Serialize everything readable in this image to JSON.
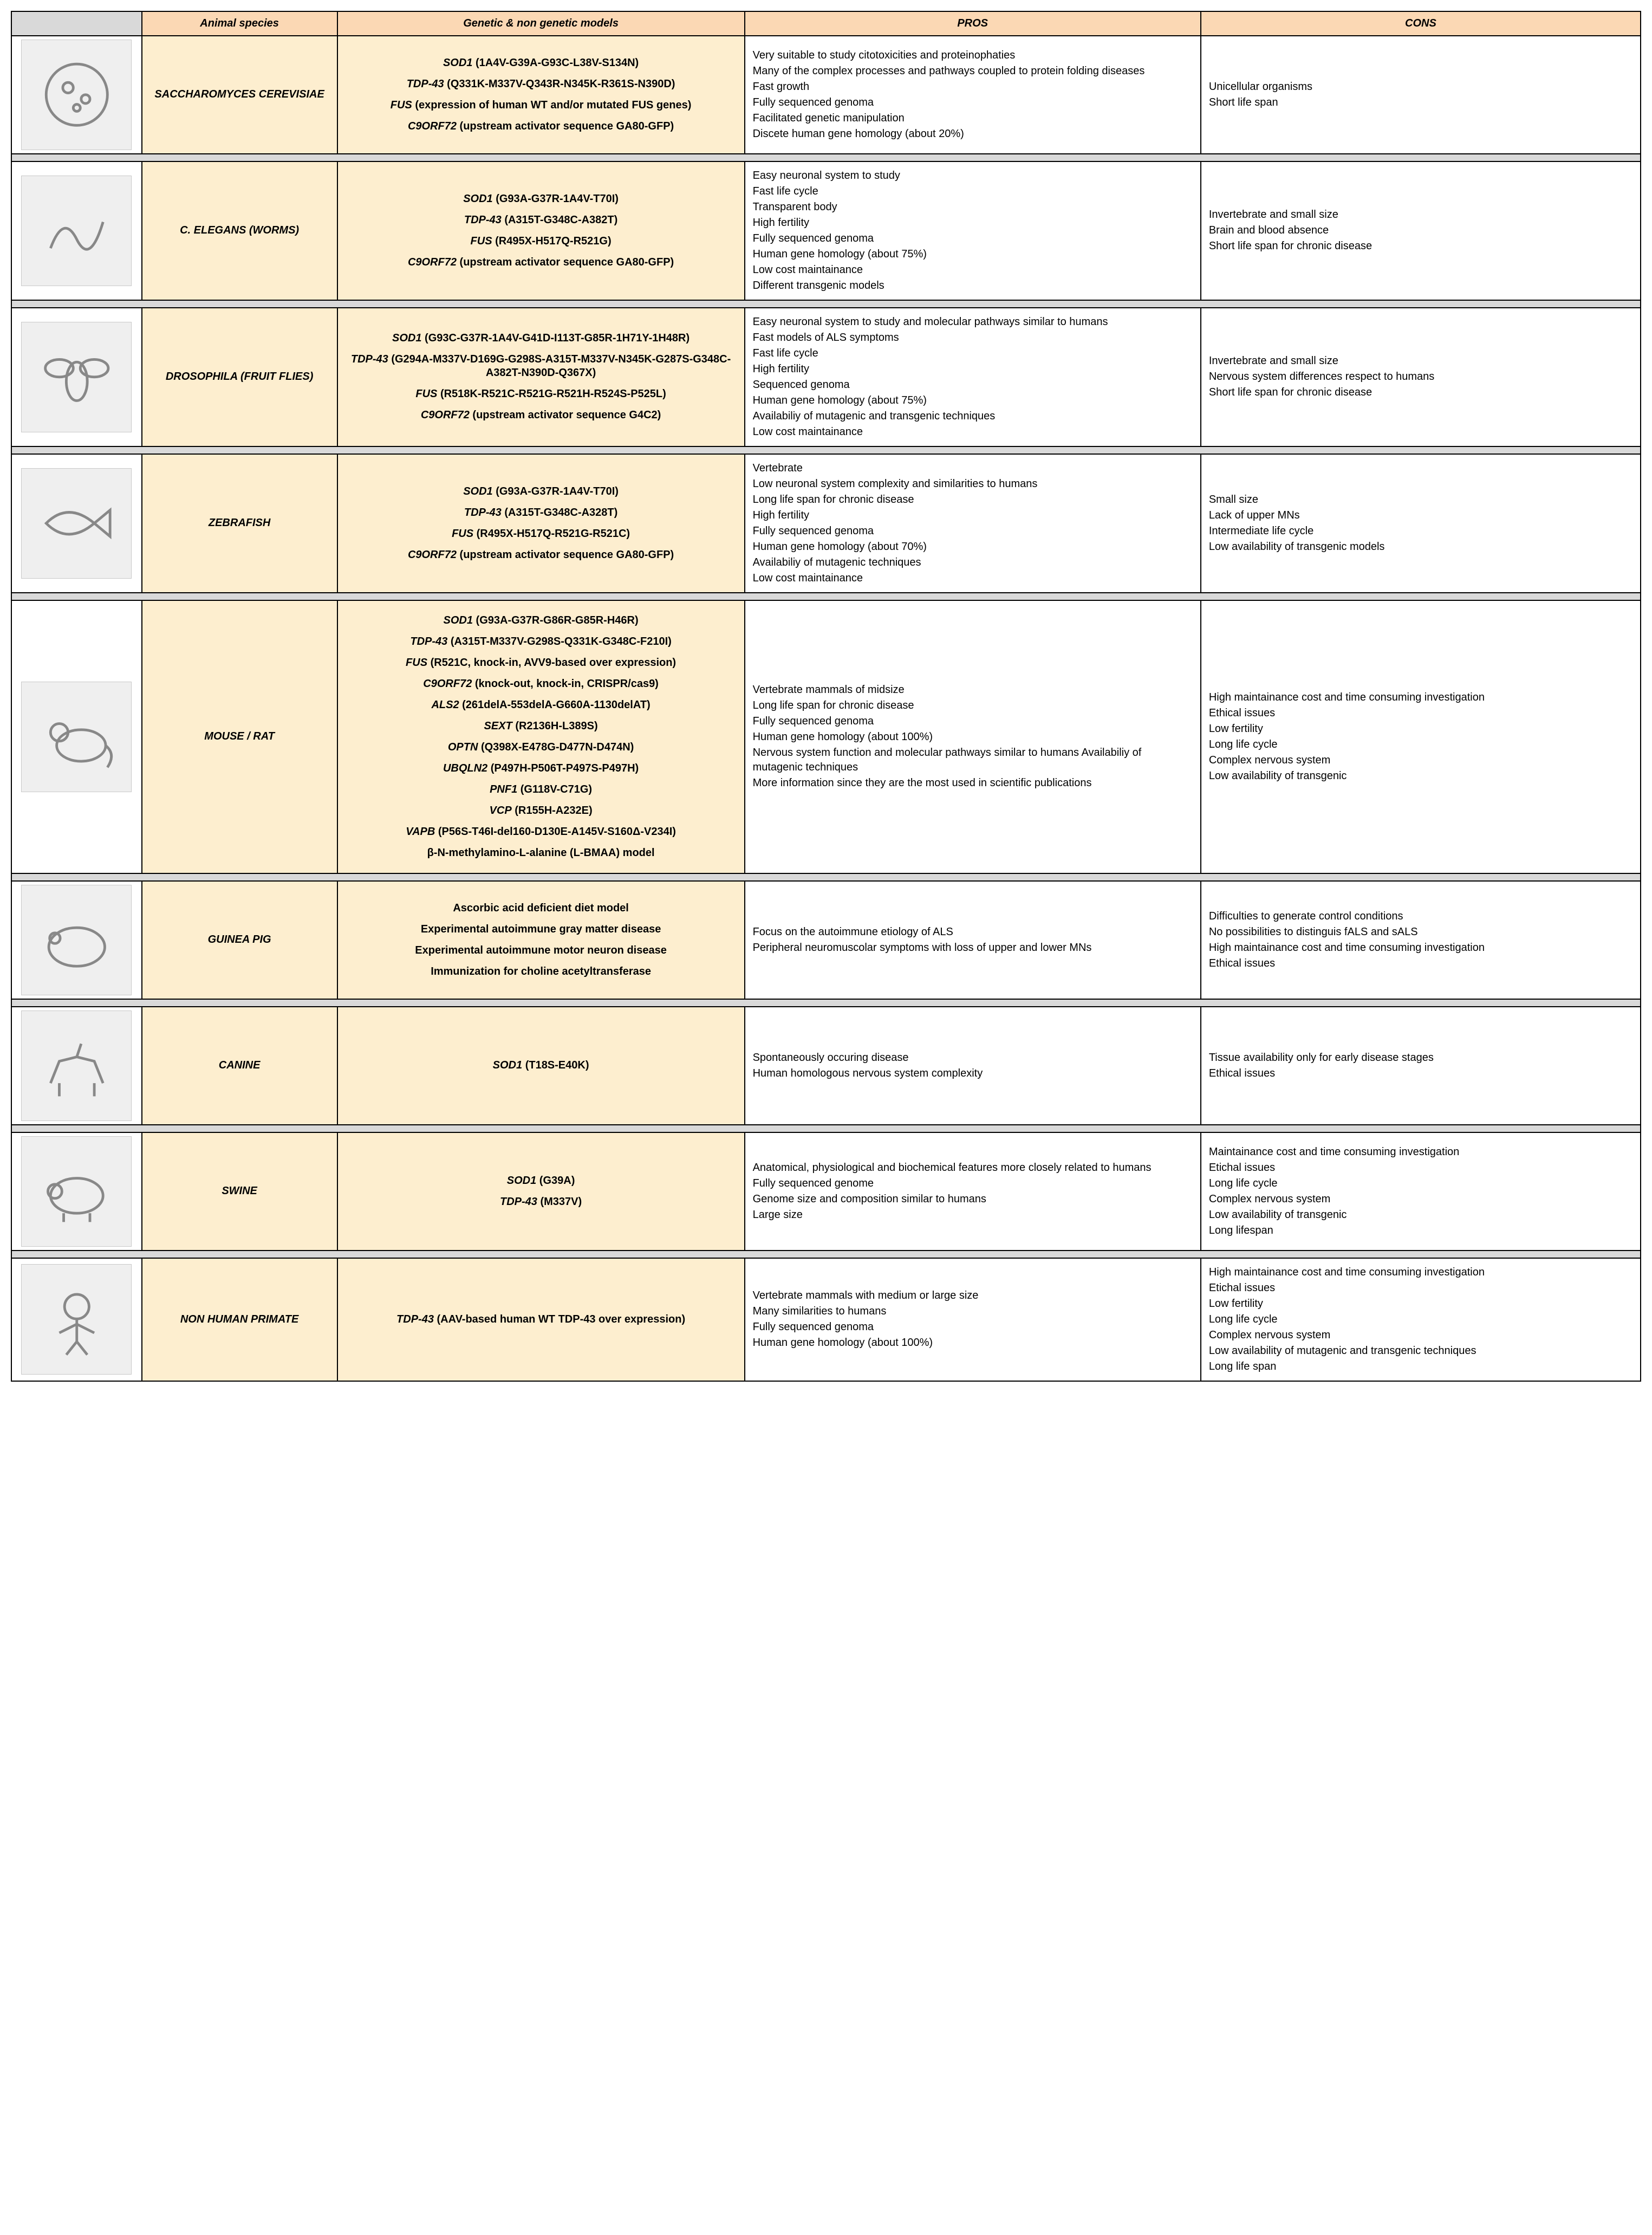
{
  "headers": {
    "image": "",
    "species": "Animal species",
    "models": "Genetic & non genetic models",
    "pros": "PROS",
    "cons": "CONS"
  },
  "colors": {
    "header_gray": "#d9d9d9",
    "header_peach": "#fbd8b4",
    "cell_cream": "#fdeecf",
    "border": "#000000",
    "bg": "#ffffff"
  },
  "rows": [
    {
      "species": "SACCHAROMYCES CEREVISIAE",
      "icon": "yeast",
      "models": [
        {
          "gene": "SOD1",
          "mut": "(1A4V-G39A-G93C-L38V-S134N)"
        },
        {
          "gene": "TDP-43",
          "mut": "(Q331K-M337V-Q343R-N345K-R361S-N390D)"
        },
        {
          "gene": "FUS",
          "mut": "(expression of human WT and/or mutated FUS genes)"
        },
        {
          "gene": "C9ORF72",
          "mut": "(upstream activator sequence GA80-GFP)"
        }
      ],
      "pros": [
        "Very suitable to study citotoxicities and proteinophaties",
        "Many of the complex processes and pathways coupled to protein folding diseases",
        "Fast growth",
        "Fully sequenced genoma",
        "Facilitated genetic manipulation",
        "Discete human gene homology (about 20%)"
      ],
      "cons": [
        "Unicellular organisms",
        "Short life span"
      ]
    },
    {
      "species": "C. ELEGANS (WORMS)",
      "icon": "worm",
      "models": [
        {
          "gene": "SOD1",
          "mut": "(G93A-G37R-1A4V-T70I)"
        },
        {
          "gene": "TDP-43",
          "mut": "(A315T-G348C-A382T)"
        },
        {
          "gene": "FUS",
          "mut": "(R495X-H517Q-R521G)"
        },
        {
          "gene": "C9ORF72",
          "mut": "(upstream activator sequence GA80-GFP)"
        }
      ],
      "pros": [
        "Easy neuronal system to study",
        "Fast life cycle",
        "Transparent body",
        "High fertility",
        "Fully sequenced genoma",
        "Human gene homology (about 75%)",
        "Low cost maintainance",
        "Different transgenic models"
      ],
      "cons": [
        "Invertebrate and small size",
        "Brain and blood absence",
        "Short life span for chronic disease"
      ]
    },
    {
      "species": "DROSOPHILA (FRUIT FLIES)",
      "icon": "fly",
      "models": [
        {
          "gene": "SOD1",
          "mut": "(G93C-G37R-1A4V-G41D-I113T-G85R-1H71Y-1H48R)"
        },
        {
          "gene": "TDP-43",
          "mut": "(G294A-M337V-D169G-G298S-A315T-M337V-N345K-G287S-G348C-A382T-N390D-Q367X)"
        },
        {
          "gene": "FUS",
          "mut": "(R518K-R521C-R521G-R521H-R524S-P525L)"
        },
        {
          "gene": "C9ORF72",
          "mut": "(upstream activator sequence G4C2)"
        }
      ],
      "pros": [
        "Easy neuronal system to study and molecular pathways similar to humans",
        "Fast models of ALS symptoms",
        "Fast life cycle",
        "High fertility",
        "Sequenced genoma",
        "Human gene homology (about 75%)",
        "Availabiliy of mutagenic and transgenic techniques",
        "Low cost maintainance"
      ],
      "cons": [
        "Invertebrate and small size",
        "Nervous system differences respect to humans",
        "Short life span for chronic disease"
      ]
    },
    {
      "species": "ZEBRAFISH",
      "icon": "fish",
      "models": [
        {
          "gene": "SOD1",
          "mut": "(G93A-G37R-1A4V-T70I)"
        },
        {
          "gene": "TDP-43",
          "mut": "(A315T-G348C-A328T)"
        },
        {
          "gene": "FUS",
          "mut": "(R495X-H517Q-R521G-R521C)"
        },
        {
          "gene": "C9ORF72",
          "mut": "(upstream activator sequence GA80-GFP)"
        }
      ],
      "pros": [
        "Vertebrate",
        "Low neuronal system complexity and similarities to humans",
        "Long life span for chronic disease",
        "High fertility",
        "Fully sequenced genoma",
        "Human gene homology (about 70%)",
        "Availabiliy of mutagenic techniques",
        "Low cost maintainance"
      ],
      "cons": [
        "Small size",
        "Lack of upper MNs",
        "Intermediate life cycle",
        "Low availability of transgenic models"
      ]
    },
    {
      "species": "MOUSE / RAT",
      "icon": "mouse",
      "models": [
        {
          "gene": "SOD1",
          "mut": "(G93A-G37R-G86R-G85R-H46R)"
        },
        {
          "gene": "TDP-43",
          "mut": "(A315T-M337V-G298S-Q331K-G348C-F210I)"
        },
        {
          "gene": "FUS",
          "mut": "(R521C, knock-in, AVV9-based over expression)"
        },
        {
          "gene": "C9ORF72",
          "mut": "(knock-out, knock-in, CRISPR/cas9)"
        },
        {
          "gene": "ALS2",
          "mut": "(261delA-553delA-G660A-1130delAT)"
        },
        {
          "gene": "SEXT",
          "mut": "(R2136H-L389S)"
        },
        {
          "gene": "OPTN",
          "mut": "(Q398X-E478G-D477N-D474N)"
        },
        {
          "gene": "UBQLN2",
          "mut": "(P497H-P506T-P497S-P497H)"
        },
        {
          "gene": "PNF1",
          "mut": "(G118V-C71G)"
        },
        {
          "gene": "VCP",
          "mut": "(R155H-A232E)"
        },
        {
          "gene": "VAPB",
          "mut": "(P56S-T46I-del160-D130E-A145V-S160Δ-V234I)"
        },
        {
          "plain": "β-N-methylamino-L-alanine (L-BMAA) model"
        }
      ],
      "pros": [
        "Vertebrate mammals of midsize",
        "Long life span for chronic disease",
        "Fully sequenced genoma",
        "Human gene homology (about 100%)",
        "Nervous system function and molecular pathways similar to humans   Availabiliy of mutagenic techniques",
        "More information since they are the most used in scientific publications"
      ],
      "cons": [
        "High maintainance cost and time consuming investigation",
        "Ethical issues",
        "Low fertility",
        "Long life cycle",
        "Complex nervous system",
        "Low availability of transgenic"
      ]
    },
    {
      "species": "GUINEA PIG",
      "icon": "guineapig",
      "models": [
        {
          "plain": "Ascorbic acid deficient diet model"
        },
        {
          "plain": "Experimental autoimmune gray matter disease"
        },
        {
          "plain": "Experimental autoimmune motor neuron disease"
        },
        {
          "plain": "Immunization for choline acetyltransferase"
        }
      ],
      "pros": [
        "Focus on the autoimmune etiology of ALS",
        "Peripheral neuromuscolar symptoms with loss of upper and lower MNs"
      ],
      "cons": [
        "Difficulties to generate control conditions",
        "No possibilities to distinguis fALS and sALS",
        "High maintainance cost and time consuming investigation",
        "Ethical issues"
      ]
    },
    {
      "species": "CANINE",
      "icon": "dog",
      "models": [
        {
          "gene": "SOD1",
          "mut": "(T18S-E40K)"
        }
      ],
      "pros": [
        "Spontaneously occuring disease",
        "Human homologous nervous system complexity"
      ],
      "cons": [
        "Tissue availability only for early disease stages",
        "Ethical issues"
      ]
    },
    {
      "species": "SWINE",
      "icon": "pig",
      "models": [
        {
          "gene": "SOD1",
          "mut": "(G39A)"
        },
        {
          "gene": "TDP-43",
          "mut": "(M337V)"
        }
      ],
      "pros": [
        "Anatomical, physiological and biochemical features more closely related to humans",
        "Fully sequenced genome",
        "Genome size and composition similar to humans",
        "Large size"
      ],
      "cons": [
        "Maintainance cost and time consuming investigation",
        "Etichal issues",
        "Long life cycle",
        "Complex nervous system",
        "Low availability of transgenic",
        "Long lifespan"
      ]
    },
    {
      "species": "NON HUMAN PRIMATE",
      "icon": "primate",
      "models": [
        {
          "gene": "TDP-43",
          "mut": "(AAV-based human WT TDP-43 over expression)"
        }
      ],
      "pros": [
        "Vertebrate mammals with medium or large size",
        "Many similarities to humans",
        "Fully sequenced genoma",
        "Human gene homology (about 100%)"
      ],
      "cons": [
        "High maintainance cost and time consuming investigation",
        "Etichal issues",
        "Low fertility",
        "Long life cycle",
        "Complex nervous system",
        "Low availability of mutagenic and transgenic techniques",
        "Long life span"
      ]
    }
  ]
}
